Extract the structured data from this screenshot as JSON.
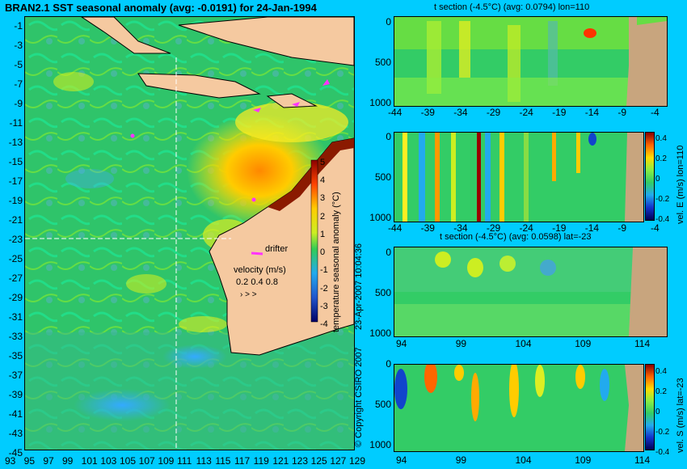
{
  "main_map": {
    "title": "BRAN2.1 SST seasonal anomaly (avg: -0.0191) for 24-Jan-1994",
    "lat_ticks": [
      "-1",
      "-3",
      "-5",
      "-7",
      "-9",
      "-11",
      "-13",
      "-15",
      "-17",
      "-19",
      "-21",
      "-23",
      "-25",
      "-27",
      "-29",
      "-31",
      "-33",
      "-35",
      "-37",
      "-39",
      "-41",
      "-43",
      "-45"
    ],
    "lon_ticks": [
      "93",
      "95",
      "97",
      "99",
      "101",
      "103",
      "105",
      "107",
      "109",
      "111",
      "113",
      "115",
      "117",
      "119",
      "121",
      "123",
      "125",
      "127",
      "129"
    ],
    "drifter_label": "drifter",
    "velocity": {
      "title": "velocity (m/s)",
      "scale_values": "0.2  0.4  0.8"
    },
    "colorbar": {
      "label": "temperature seasonal anomaly (°C)",
      "ticks": [
        "5",
        "4",
        "3",
        "2",
        "1",
        "0",
        "-1",
        "-2",
        "-3",
        "-4"
      ]
    }
  },
  "copyright": {
    "line1": "23-Apr-2007 10:04:36",
    "line2": "© Copyright CSIRO 2007"
  },
  "sections": {
    "t_lon": {
      "title": "t section (-4.5°C) (avg: 0.0794) lon=110",
      "x_ticks": [
        "-44",
        "-39",
        "-34",
        "-29",
        "-24",
        "-19",
        "-14",
        "-9",
        "-4"
      ],
      "y_ticks": [
        "0",
        "500",
        "1000"
      ]
    },
    "vel_e": {
      "x_ticks": [
        "-44",
        "-39",
        "-34",
        "-29",
        "-24",
        "-19",
        "-14",
        "-9",
        "-4"
      ],
      "y_ticks": [
        "0",
        "500",
        "1000"
      ],
      "cb_label": "vel. E (m/s) lon=110",
      "cb_ticks": [
        "0.4",
        "0.2",
        "0",
        "-0.2",
        "-0.4"
      ]
    },
    "t_lat": {
      "title": "t section (-4.5°C) (avg: 0.0598) lat=-23",
      "x_ticks": [
        "94",
        "99",
        "104",
        "109",
        "114"
      ],
      "y_ticks": [
        "0",
        "500",
        "1000"
      ]
    },
    "vel_s": {
      "x_ticks": [
        "94",
        "99",
        "104",
        "109",
        "114"
      ],
      "y_ticks": [
        "0",
        "500",
        "1000"
      ],
      "cb_label": "vel. S (m/s) lat=-23",
      "cb_ticks": [
        "0.4",
        "0.2",
        "0",
        "-0.2",
        "-0.4"
      ]
    }
  },
  "colors": {
    "background": "#00ccff",
    "land": "#f5c9a0",
    "section_land": "#c8a57e",
    "ocean_base": "#33cc66",
    "drifter": "#ff33ff"
  }
}
